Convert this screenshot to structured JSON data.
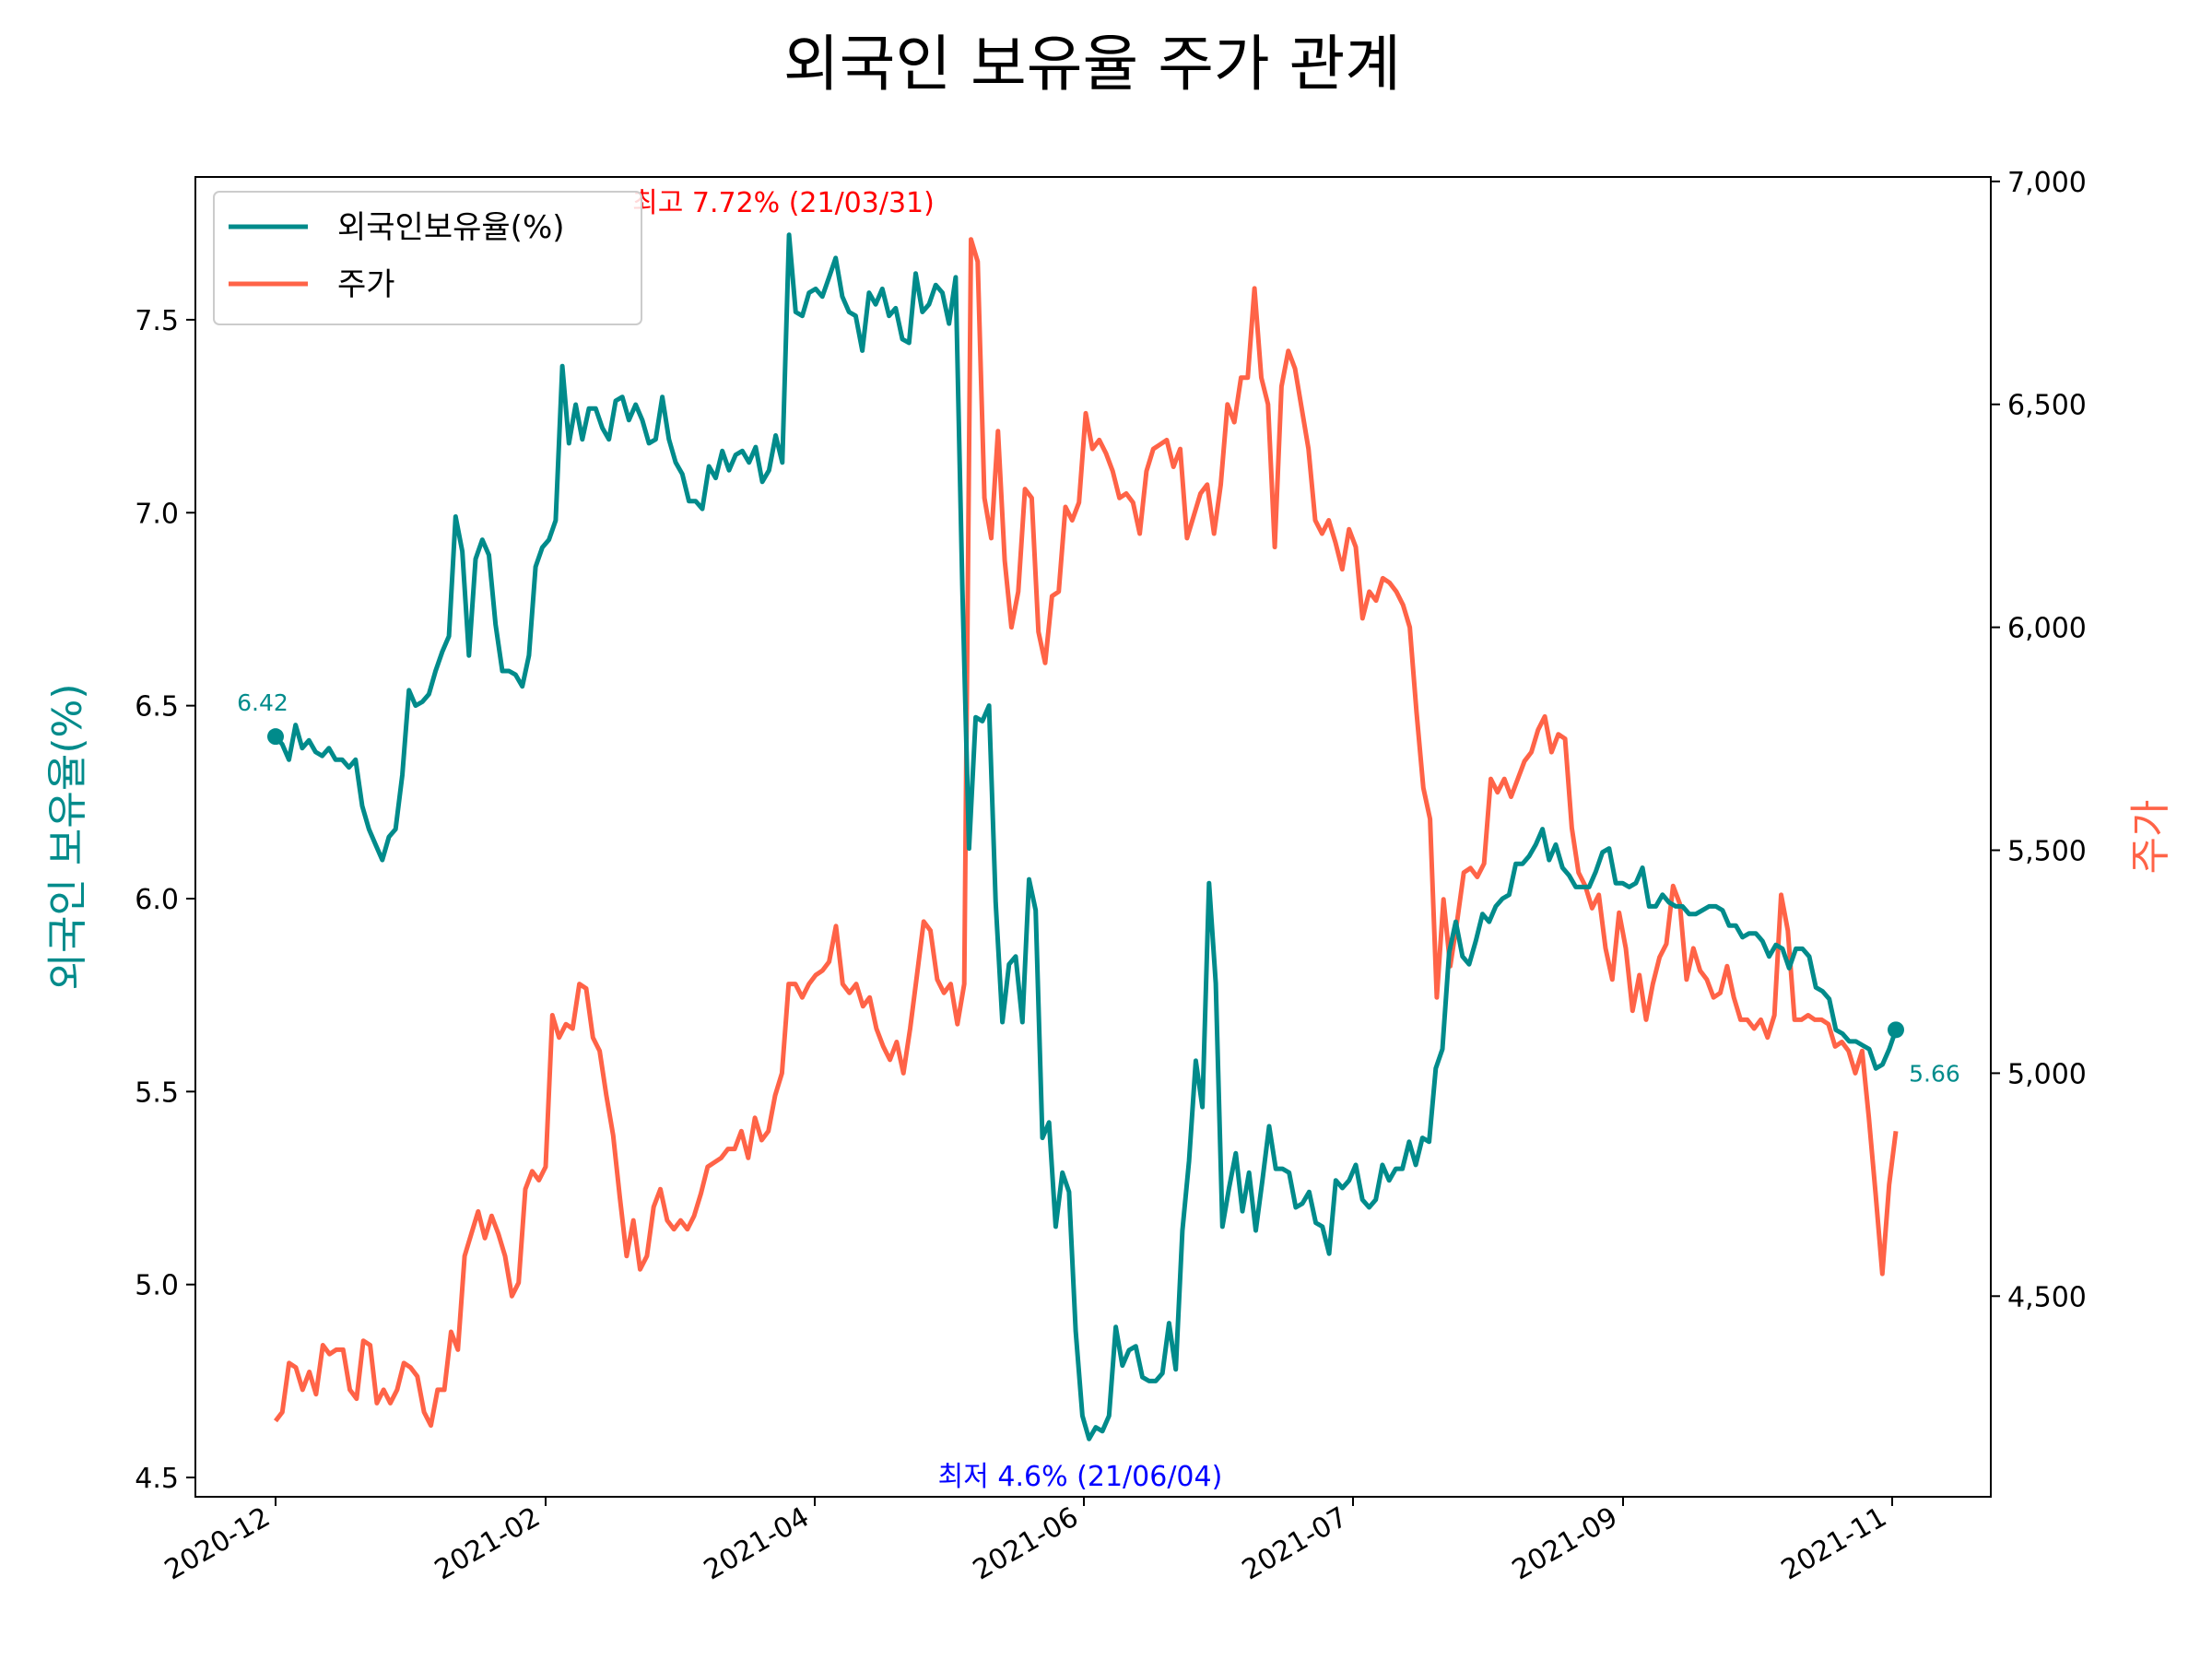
{
  "chart_data": {
    "type": "line",
    "title": "외국인 보유율 주가 관계",
    "xlabel": "",
    "x_ticks": [
      "2020-12",
      "2021-02",
      "2021-04",
      "2021-06",
      "2021-07",
      "2021-09",
      "2021-11"
    ],
    "y_left": {
      "label": "외국인 보유율(%)",
      "ticks": [
        "4.5",
        "5.0",
        "5.5",
        "6.0",
        "6.5",
        "7.0",
        "7.5"
      ],
      "range": [
        4.45,
        7.87
      ],
      "color": "#008B8B"
    },
    "y_right": {
      "label": "주가",
      "ticks": [
        "4,500",
        "5,000",
        "5,500",
        "6,000",
        "6,500",
        "7,000"
      ],
      "range": [
        4050,
        7010
      ],
      "color": "#FF6347"
    },
    "legend": {
      "position": "top-left",
      "entries": [
        "외국인보유율(%)",
        "주가"
      ]
    },
    "annotations": {
      "max": {
        "text": "최고 7.72% (21/03/31)",
        "color": "#FF0000"
      },
      "min": {
        "text": "최저 4.6% (21/06/04)",
        "color": "#0000FF"
      },
      "start": {
        "text": "6.42",
        "value": 6.42
      },
      "end": {
        "text": "5.66",
        "value": 5.66
      }
    },
    "series": [
      {
        "name": "외국인보유율(%)",
        "axis": "left",
        "color": "#008B8B",
        "values": [
          6.42,
          6.4,
          6.36,
          6.45,
          6.39,
          6.41,
          6.38,
          6.37,
          6.39,
          6.36,
          6.36,
          6.34,
          6.36,
          6.24,
          6.18,
          6.14,
          6.1,
          6.16,
          6.18,
          6.32,
          6.54,
          6.5,
          6.51,
          6.53,
          6.59,
          6.64,
          6.68,
          6.99,
          6.9,
          6.63,
          6.88,
          6.93,
          6.89,
          6.71,
          6.59,
          6.59,
          6.58,
          6.55,
          6.63,
          6.86,
          6.91,
          6.93,
          6.98,
          7.38,
          7.18,
          7.28,
          7.19,
          7.27,
          7.27,
          7.22,
          7.19,
          7.29,
          7.3,
          7.24,
          7.28,
          7.24,
          7.18,
          7.19,
          7.3,
          7.19,
          7.13,
          7.1,
          7.03,
          7.03,
          7.01,
          7.12,
          7.09,
          7.16,
          7.11,
          7.15,
          7.16,
          7.13,
          7.17,
          7.08,
          7.11,
          7.2,
          7.13,
          7.72,
          7.52,
          7.51,
          7.57,
          7.58,
          7.56,
          7.61,
          7.66,
          7.56,
          7.52,
          7.51,
          7.42,
          7.57,
          7.54,
          7.58,
          7.51,
          7.53,
          7.45,
          7.44,
          7.62,
          7.52,
          7.54,
          7.59,
          7.57,
          7.49,
          7.61,
          6.8,
          6.13,
          6.47,
          6.46,
          6.5,
          5.99,
          5.68,
          5.83,
          5.85,
          5.68,
          6.05,
          5.97,
          5.38,
          5.42,
          5.15,
          5.29,
          5.24,
          4.88,
          4.66,
          4.6,
          4.63,
          4.62,
          4.66,
          4.89,
          4.79,
          4.83,
          4.84,
          4.76,
          4.75,
          4.75,
          4.77,
          4.9,
          4.78,
          5.14,
          5.32,
          5.58,
          5.46,
          6.04,
          5.78,
          5.15,
          5.25,
          5.34,
          5.19,
          5.29,
          5.14,
          5.27,
          5.41,
          5.3,
          5.3,
          5.29,
          5.2,
          5.21,
          5.24,
          5.16,
          5.15,
          5.08,
          5.27,
          5.25,
          5.27,
          5.31,
          5.22,
          5.2,
          5.22,
          5.31,
          5.27,
          5.3,
          5.3,
          5.37,
          5.31,
          5.38,
          5.37,
          5.56,
          5.61,
          5.86,
          5.94,
          5.85,
          5.83,
          5.89,
          5.96,
          5.94,
          5.98,
          6.0,
          6.01,
          6.09,
          6.09,
          6.11,
          6.14,
          6.18,
          6.1,
          6.14,
          6.08,
          6.06,
          6.03,
          6.03,
          6.03,
          6.07,
          6.12,
          6.13,
          6.04,
          6.04,
          6.03,
          6.04,
          6.08,
          5.98,
          5.98,
          6.01,
          5.99,
          5.98,
          5.98,
          5.96,
          5.96,
          5.97,
          5.98,
          5.98,
          5.97,
          5.93,
          5.93,
          5.9,
          5.91,
          5.91,
          5.89,
          5.85,
          5.88,
          5.87,
          5.82,
          5.87,
          5.87,
          5.85,
          5.77,
          5.76,
          5.74,
          5.66,
          5.65,
          5.63,
          5.63,
          5.62,
          5.61,
          5.56,
          5.57,
          5.61,
          5.66
        ]
      },
      {
        "name": "주가",
        "axis": "right",
        "color": "#FF6347",
        "values": [
          4220,
          4240,
          4350,
          4340,
          4290,
          4330,
          4280,
          4390,
          4370,
          4380,
          4380,
          4290,
          4270,
          4400,
          4390,
          4260,
          4290,
          4260,
          4290,
          4350,
          4340,
          4320,
          4240,
          4210,
          4290,
          4290,
          4420,
          4380,
          4590,
          4640,
          4690,
          4630,
          4680,
          4640,
          4590,
          4500,
          4530,
          4740,
          4780,
          4760,
          4790,
          5130,
          5080,
          5110,
          5100,
          5200,
          5190,
          5080,
          5050,
          4950,
          4860,
          4720,
          4590,
          4670,
          4560,
          4590,
          4700,
          4740,
          4670,
          4650,
          4670,
          4650,
          4680,
          4730,
          4790,
          4800,
          4810,
          4830,
          4830,
          4870,
          4810,
          4900,
          4850,
          4870,
          4950,
          5000,
          5200,
          5200,
          5170,
          5200,
          5220,
          5230,
          5250,
          5330,
          5200,
          5180,
          5200,
          5150,
          5170,
          5100,
          5060,
          5030,
          5070,
          5000,
          5100,
          5220,
          5340,
          5320,
          5210,
          5180,
          5200,
          5110,
          5200,
          6870,
          6820,
          6290,
          6200,
          6440,
          6150,
          6000,
          6080,
          6310,
          6290,
          5990,
          5920,
          6070,
          6080,
          6270,
          6240,
          6280,
          6480,
          6400,
          6420,
          6390,
          6350,
          6290,
          6300,
          6280,
          6210,
          6350,
          6400,
          6410,
          6420,
          6360,
          6400,
          6200,
          6250,
          6300,
          6320,
          6210,
          6320,
          6500,
          6460,
          6560,
          6560,
          6760,
          6560,
          6500,
          6180,
          6540,
          6620,
          6580,
          6490,
          6400,
          6240,
          6210,
          6240,
          6190,
          6130,
          6220,
          6180,
          6020,
          6080,
          6060,
          6110,
          6100,
          6080,
          6050,
          6000,
          5810,
          5640,
          5570,
          5170,
          5390,
          5240,
          5340,
          5450,
          5460,
          5440,
          5470,
          5660,
          5630,
          5660,
          5620,
          5660,
          5700,
          5720,
          5770,
          5800,
          5720,
          5760,
          5750,
          5550,
          5450,
          5420,
          5370,
          5400,
          5280,
          5210,
          5360,
          5280,
          5140,
          5220,
          5120,
          5200,
          5260,
          5290,
          5420,
          5380,
          5210,
          5280,
          5230,
          5210,
          5170,
          5180,
          5240,
          5170,
          5120,
          5120,
          5100,
          5120,
          5080,
          5130,
          5400,
          5320,
          5120,
          5120,
          5130,
          5120,
          5120,
          5110,
          5060,
          5070,
          5050,
          5000,
          5050,
          4900,
          4730,
          4550,
          4750,
          4870
        ]
      }
    ]
  }
}
